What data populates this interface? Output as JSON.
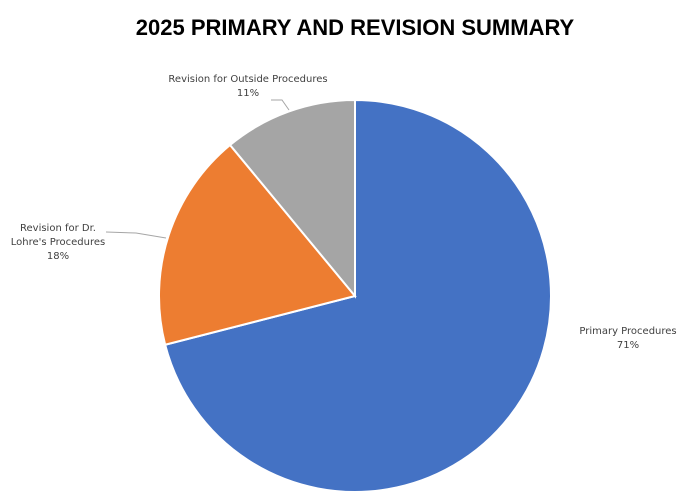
{
  "chart_data": {
    "type": "pie",
    "title": "2025 PRIMARY AND REVISION SUMMARY",
    "categories": [
      "Primary Procedures",
      "Revision for Dr. Lohre's Procedures",
      "Revision for Outside Procedures"
    ],
    "values": [
      71,
      18,
      11
    ],
    "value_labels": [
      "71%",
      "18%",
      "11%"
    ],
    "colors": [
      "#4472c4",
      "#ed7d31",
      "#a5a5a5"
    ]
  }
}
